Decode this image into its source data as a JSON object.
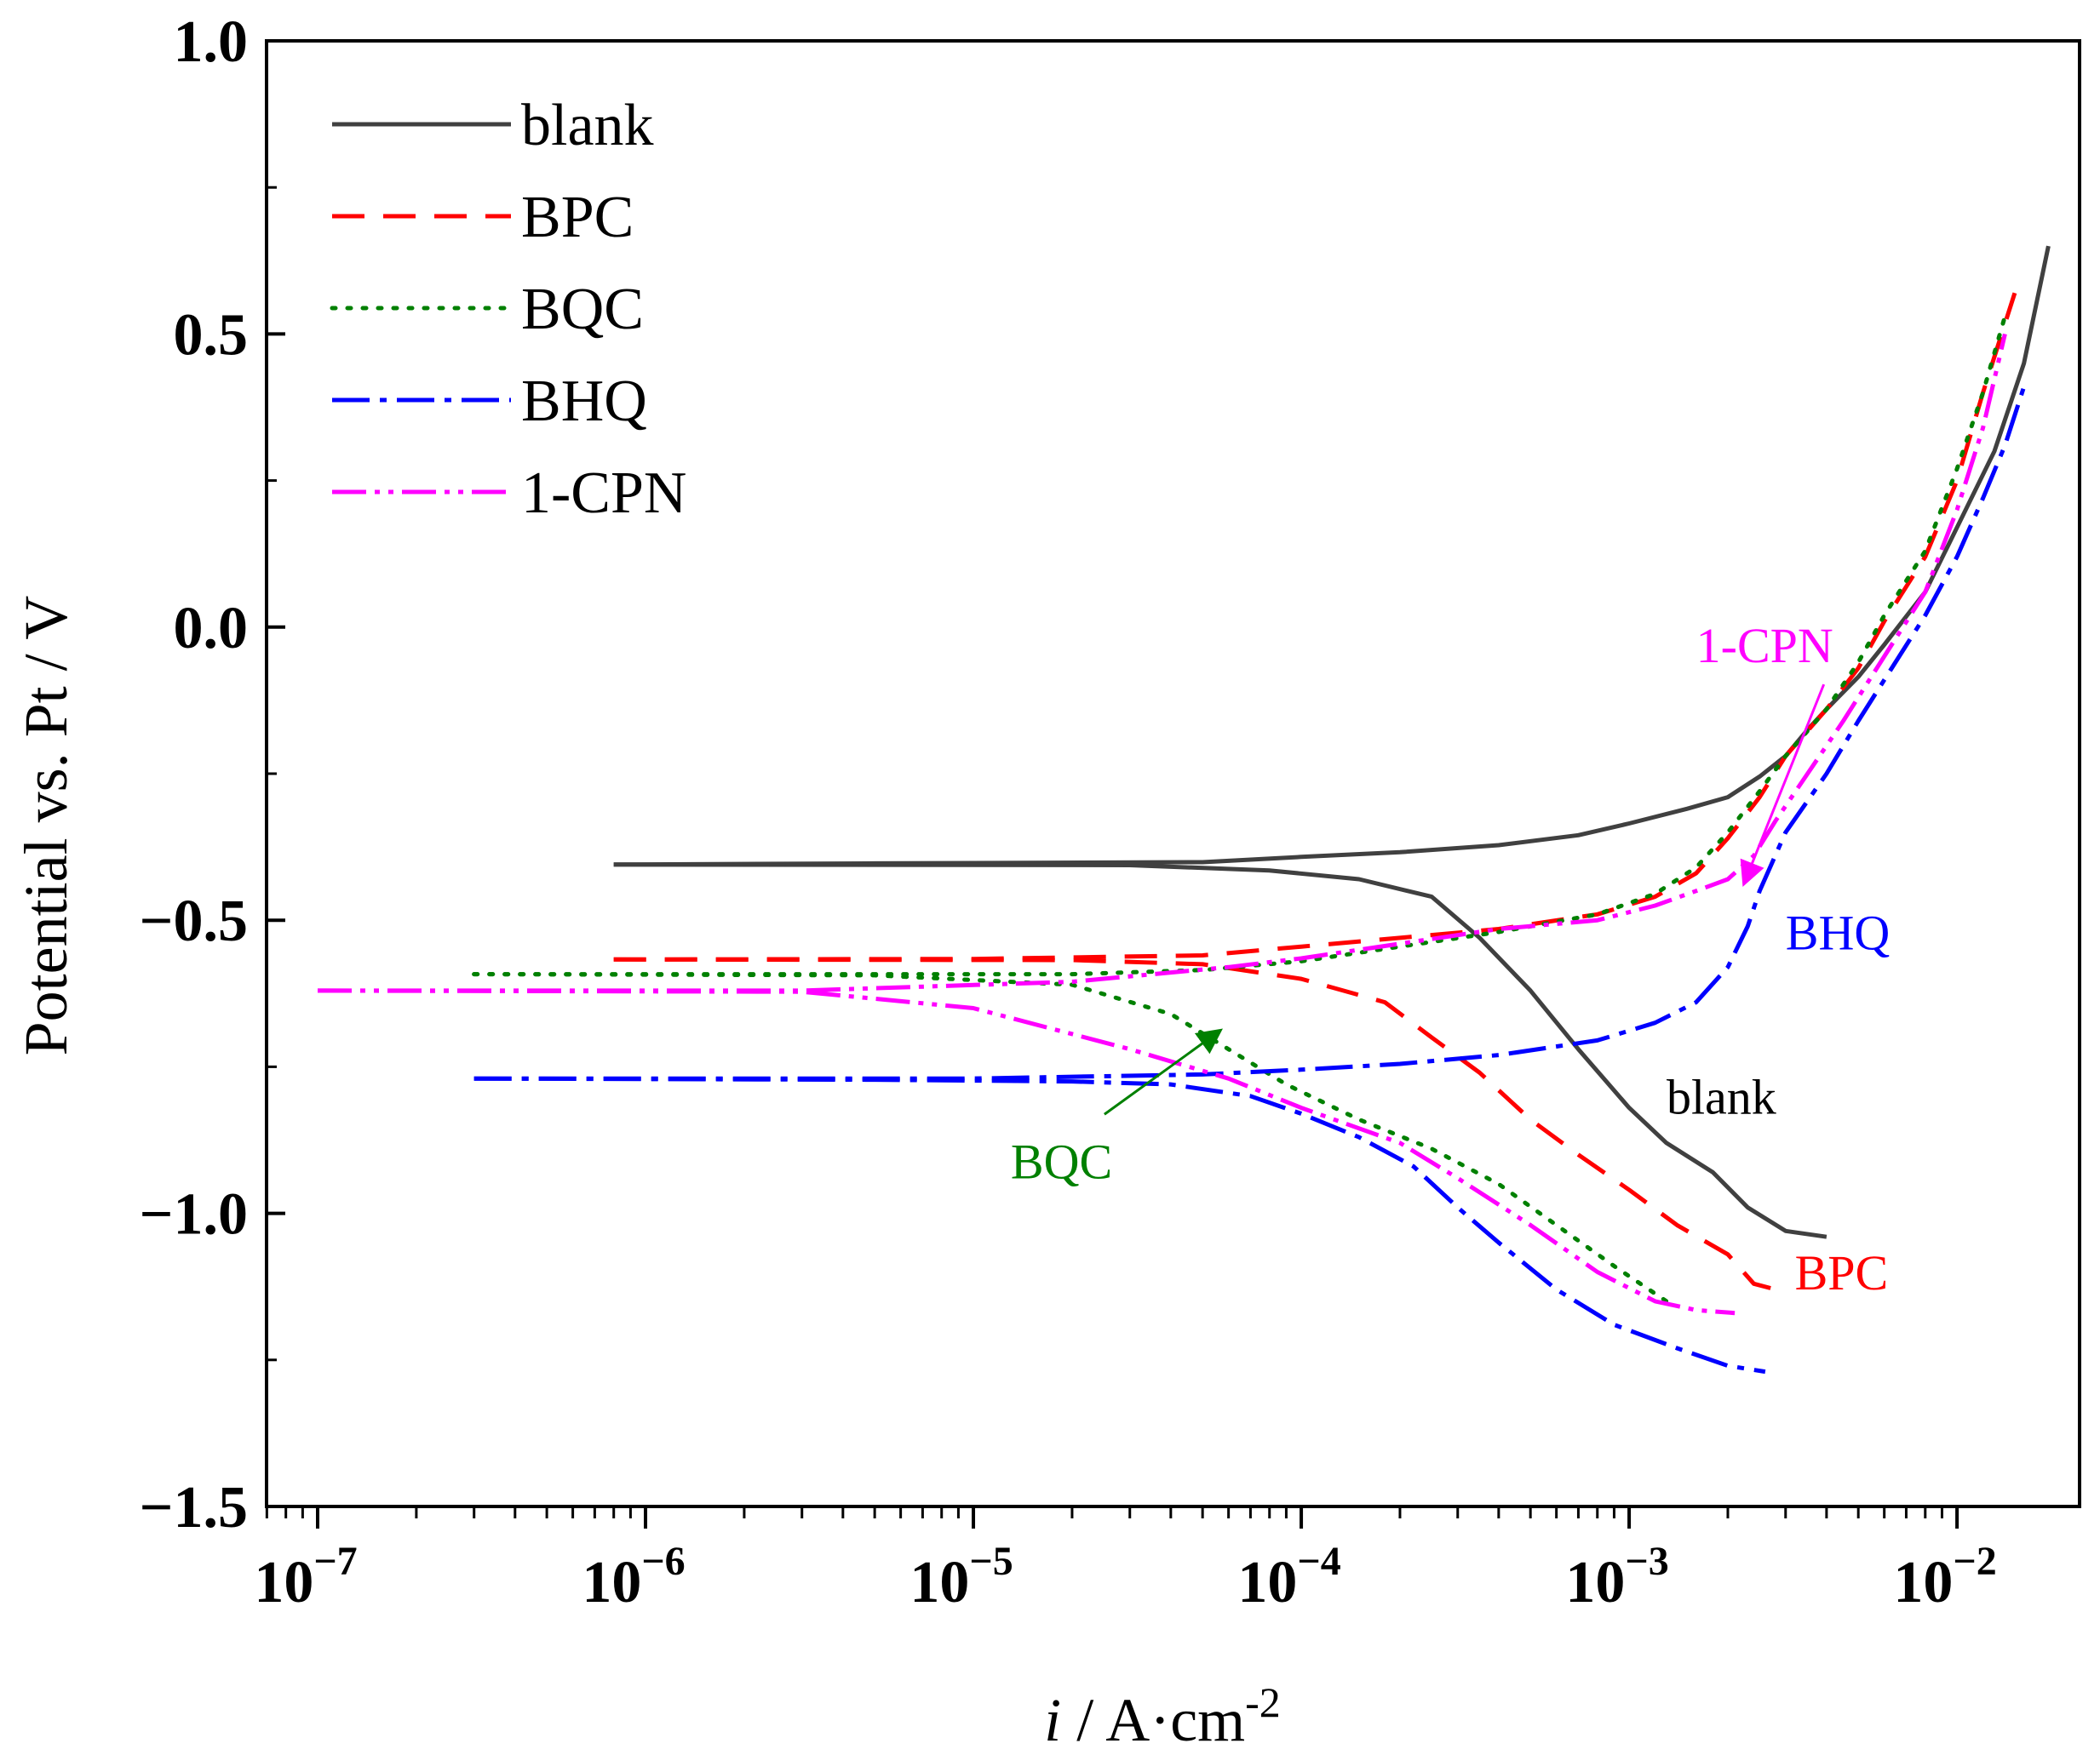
{
  "chart_data": {
    "type": "line",
    "title": "",
    "xlabel": "i / A·cm",
    "xlabel_italic_part": "i",
    "xlabel_rest": " / A·cm",
    "xlabel_superscript": "-2",
    "ylabel": "Potential vs. Pt / V",
    "xscale": "log",
    "xlim": [
      1e-07,
      0.02
    ],
    "ylim": [
      -1.5,
      1.0
    ],
    "x_ticks": [
      {
        "value": 1e-07,
        "base": "10",
        "exp": "−7"
      },
      {
        "value": 1e-06,
        "base": "10",
        "exp": "−6"
      },
      {
        "value": 1e-05,
        "base": "10",
        "exp": "−5"
      },
      {
        "value": 0.0001,
        "base": "10",
        "exp": "−4"
      },
      {
        "value": 0.001,
        "base": "10",
        "exp": "−3"
      },
      {
        "value": 0.01,
        "base": "10",
        "exp": "−2"
      }
    ],
    "y_ticks": [
      {
        "value": 1.0,
        "label": "1.0"
      },
      {
        "value": 0.5,
        "label": "0.5"
      },
      {
        "value": 0.0,
        "label": "0.0"
      },
      {
        "value": -0.5,
        "label": "−0.5"
      },
      {
        "value": -1.0,
        "label": "−1.0"
      },
      {
        "value": -1.5,
        "label": "−1.5"
      }
    ],
    "legend_position": "top-left",
    "series": [
      {
        "name": "blank",
        "color": "#404040",
        "dash": "solid",
        "anodic": [
          [
            8e-07,
            -0.405
          ],
          [
            5e-06,
            -0.403
          ],
          [
            5e-05,
            -0.401
          ],
          [
            0.0001,
            -0.392
          ],
          [
            0.0002,
            -0.384
          ],
          [
            0.0004,
            -0.372
          ],
          [
            0.0007,
            -0.355
          ],
          [
            0.001,
            -0.335
          ],
          [
            0.0015,
            -0.31
          ],
          [
            0.002,
            -0.29
          ],
          [
            0.0025,
            -0.255
          ],
          [
            0.003,
            -0.22
          ],
          [
            0.0035,
            -0.175
          ],
          [
            0.004,
            -0.14
          ],
          [
            0.005,
            -0.085
          ],
          [
            0.006,
            -0.03
          ],
          [
            0.008,
            0.06
          ],
          [
            0.01,
            0.17
          ],
          [
            0.013,
            0.3
          ],
          [
            0.016,
            0.45
          ],
          [
            0.019,
            0.65
          ]
        ],
        "cathodic": [
          [
            8e-07,
            -0.405
          ],
          [
            3e-05,
            -0.406
          ],
          [
            8e-05,
            -0.415
          ],
          [
            0.00015,
            -0.43
          ],
          [
            0.00025,
            -0.46
          ],
          [
            0.00035,
            -0.53
          ],
          [
            0.0005,
            -0.62
          ],
          [
            0.0007,
            -0.72
          ],
          [
            0.001,
            -0.82
          ],
          [
            0.0013,
            -0.88
          ],
          [
            0.0018,
            -0.93
          ],
          [
            0.0023,
            -0.99
          ],
          [
            0.003,
            -1.03
          ],
          [
            0.004,
            -1.04
          ]
        ]
      },
      {
        "name": "BPC",
        "color": "#ff0000",
        "dash": "38,22",
        "anodic": [
          [
            8e-07,
            -0.567
          ],
          [
            1e-05,
            -0.566
          ],
          [
            5e-05,
            -0.56
          ],
          [
            0.0001,
            -0.545
          ],
          [
            0.0002,
            -0.53
          ],
          [
            0.0004,
            -0.515
          ],
          [
            0.0008,
            -0.49
          ],
          [
            0.0012,
            -0.46
          ],
          [
            0.0016,
            -0.42
          ],
          [
            0.002,
            -0.36
          ],
          [
            0.0025,
            -0.29
          ],
          [
            0.003,
            -0.22
          ],
          [
            0.004,
            -0.14
          ],
          [
            0.005,
            -0.07
          ],
          [
            0.006,
            0.01
          ],
          [
            0.008,
            0.12
          ],
          [
            0.01,
            0.25
          ],
          [
            0.012,
            0.4
          ],
          [
            0.015,
            0.57
          ]
        ],
        "cathodic": [
          [
            8e-07,
            -0.567
          ],
          [
            2e-05,
            -0.568
          ],
          [
            5e-05,
            -0.575
          ],
          [
            0.0001,
            -0.6
          ],
          [
            0.00018,
            -0.64
          ],
          [
            0.00025,
            -0.7
          ],
          [
            0.00035,
            -0.76
          ],
          [
            0.0005,
            -0.84
          ],
          [
            0.0007,
            -0.9
          ],
          [
            0.001,
            -0.96
          ],
          [
            0.0014,
            -1.02
          ],
          [
            0.002,
            -1.07
          ],
          [
            0.0024,
            -1.12
          ],
          [
            0.0028,
            -1.13
          ]
        ]
      },
      {
        "name": "BQC",
        "color": "#008000",
        "dash": "4,14",
        "anodic": [
          [
            3e-07,
            -0.592
          ],
          [
            3e-06,
            -0.592
          ],
          [
            2e-05,
            -0.592
          ],
          [
            5e-05,
            -0.585
          ],
          [
            0.0001,
            -0.57
          ],
          [
            0.0002,
            -0.545
          ],
          [
            0.0004,
            -0.52
          ],
          [
            0.0008,
            -0.49
          ],
          [
            0.0012,
            -0.455
          ],
          [
            0.0016,
            -0.41
          ],
          [
            0.002,
            -0.35
          ],
          [
            0.0025,
            -0.28
          ],
          [
            0.003,
            -0.22
          ],
          [
            0.004,
            -0.14
          ],
          [
            0.005,
            -0.06
          ],
          [
            0.006,
            0.02
          ],
          [
            0.008,
            0.13
          ],
          [
            0.01,
            0.27
          ],
          [
            0.012,
            0.4
          ],
          [
            0.014,
            0.53
          ]
        ],
        "cathodic": [
          [
            3e-07,
            -0.592
          ],
          [
            5e-06,
            -0.594
          ],
          [
            2e-05,
            -0.61
          ],
          [
            4e-05,
            -0.66
          ],
          [
            6e-05,
            -0.72
          ],
          [
            9e-05,
            -0.78
          ],
          [
            0.00015,
            -0.84
          ],
          [
            0.00025,
            -0.89
          ],
          [
            0.0004,
            -0.95
          ],
          [
            0.0006,
            -1.02
          ],
          [
            0.0009,
            -1.09
          ],
          [
            0.0013,
            -1.15
          ]
        ]
      },
      {
        "name": "BHQ",
        "color": "#0000ff",
        "dash": "44,12,8,12",
        "anodic": [
          [
            3e-07,
            -0.77
          ],
          [
            1e-05,
            -0.77
          ],
          [
            5e-05,
            -0.763
          ],
          [
            0.0001,
            -0.755
          ],
          [
            0.0002,
            -0.745
          ],
          [
            0.0004,
            -0.73
          ],
          [
            0.0008,
            -0.705
          ],
          [
            0.0012,
            -0.675
          ],
          [
            0.0016,
            -0.64
          ],
          [
            0.002,
            -0.58
          ],
          [
            0.0023,
            -0.51
          ],
          [
            0.0025,
            -0.45
          ],
          [
            0.003,
            -0.35
          ],
          [
            0.004,
            -0.25
          ],
          [
            0.005,
            -0.16
          ],
          [
            0.006,
            -0.09
          ],
          [
            0.008,
            0.02
          ],
          [
            0.01,
            0.12
          ],
          [
            0.012,
            0.22
          ],
          [
            0.014,
            0.31
          ],
          [
            0.016,
            0.41
          ]
        ],
        "cathodic": [
          [
            3e-07,
            -0.77
          ],
          [
            5e-06,
            -0.772
          ],
          [
            2e-05,
            -0.775
          ],
          [
            4e-05,
            -0.78
          ],
          [
            7e-05,
            -0.8
          ],
          [
            0.0001,
            -0.83
          ],
          [
            0.00015,
            -0.87
          ],
          [
            0.00022,
            -0.92
          ],
          [
            0.0003,
            -0.99
          ],
          [
            0.0004,
            -1.05
          ],
          [
            0.0006,
            -1.13
          ],
          [
            0.0009,
            -1.19
          ],
          [
            0.0014,
            -1.23
          ],
          [
            0.002,
            -1.26
          ],
          [
            0.0026,
            -1.27
          ]
        ]
      },
      {
        "name": "1-CPN",
        "color": "#ff00ff",
        "dash": "40,10,6,10,6,10",
        "anodic": [
          [
            1e-07,
            -0.62
          ],
          [
            3e-06,
            -0.62
          ],
          [
            2e-05,
            -0.605
          ],
          [
            6e-05,
            -0.58
          ],
          [
            0.0001,
            -0.565
          ],
          [
            0.0002,
            -0.54
          ],
          [
            0.0004,
            -0.515
          ],
          [
            0.0008,
            -0.5
          ],
          [
            0.0012,
            -0.475
          ],
          [
            0.0016,
            -0.45
          ],
          [
            0.002,
            -0.43
          ],
          [
            0.0024,
            -0.39
          ],
          [
            0.0028,
            -0.33
          ],
          [
            0.0035,
            -0.25
          ],
          [
            0.0045,
            -0.16
          ],
          [
            0.006,
            -0.05
          ],
          [
            0.008,
            0.06
          ],
          [
            0.01,
            0.2
          ],
          [
            0.012,
            0.34
          ],
          [
            0.014,
            0.5
          ]
        ],
        "cathodic": [
          [
            1e-07,
            -0.62
          ],
          [
            3e-06,
            -0.622
          ],
          [
            1e-05,
            -0.65
          ],
          [
            3e-05,
            -0.72
          ],
          [
            6e-05,
            -0.77
          ],
          [
            0.0001,
            -0.82
          ],
          [
            0.0002,
            -0.88
          ],
          [
            0.0003,
            -0.94
          ],
          [
            0.0005,
            -1.02
          ],
          [
            0.0008,
            -1.1
          ],
          [
            0.0012,
            -1.15
          ],
          [
            0.0016,
            -1.165
          ],
          [
            0.0021,
            -1.17
          ]
        ]
      }
    ],
    "annotations": [
      {
        "text": "1-CPN",
        "color": "#ff00ff",
        "x": 0.0016,
        "y": -0.06,
        "arrow_to": [
          0.00225,
          -0.435
        ]
      },
      {
        "text": "BHQ",
        "color": "#0000ff",
        "x": 0.003,
        "y": -0.55
      },
      {
        "text": "blank",
        "color": "#000000",
        "x": 0.0013,
        "y": -0.83
      },
      {
        "text": "BQC",
        "color": "#008000",
        "x": 1.3e-05,
        "y": -0.94,
        "arrow_to": [
          5.6e-05,
          -0.69
        ]
      },
      {
        "text": "BPC",
        "color": "#ff0000",
        "x": 0.0032,
        "y": -1.13
      }
    ]
  }
}
